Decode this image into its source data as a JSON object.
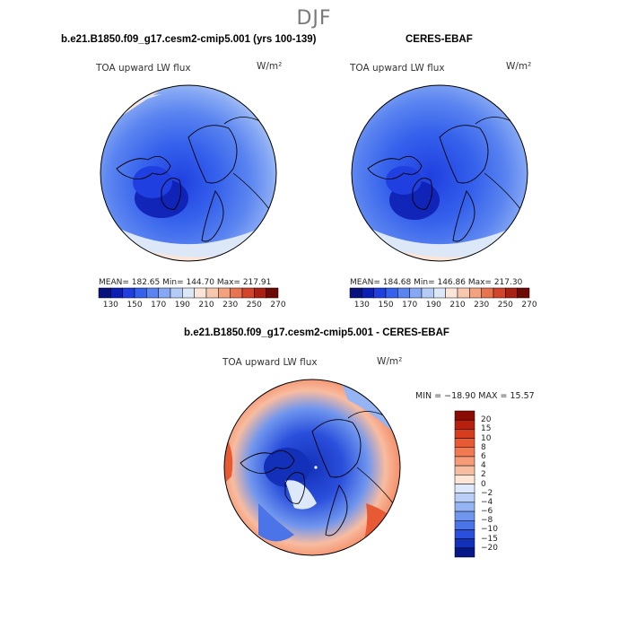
{
  "figure": {
    "season": "DJF",
    "variable": "TOA upward LW flux",
    "units": "W/m²",
    "colors": {
      "accent_blue": "#2f5fe8",
      "deep_blue": "#0a1a9a",
      "land_outline": "#000000"
    }
  },
  "panels": {
    "model": {
      "title": "b.e21.B1850.f09_g17.cesm2-cmip5.001 (yrs 100-139)",
      "stats": "MEAN= 182.65   Min= 144.70   Max= 217.91"
    },
    "obs": {
      "title": "CERES-EBAF",
      "stats": "MEAN= 184.68   Min= 146.86   Max= 217.30"
    },
    "diff": {
      "title": "b.e21.B1850.f09_g17.cesm2-cmip5.001 - CERES-EBAF",
      "minmax": "MIN = −18.90  MAX =  15.57"
    }
  },
  "chart_data": [
    {
      "type": "heatmap",
      "name": "model",
      "projection": "north polar stereographic",
      "colorbar_levels": [
        130,
        150,
        170,
        190,
        210,
        230,
        250,
        270
      ],
      "colorbar_colors": [
        "#08127e",
        "#0d1fb3",
        "#1f3fe0",
        "#3561ec",
        "#5a84f0",
        "#86a8f4",
        "#b4cbf6",
        "#dce7f8",
        "#fbe5d8",
        "#f8c8ae",
        "#f2a27f",
        "#e8734f",
        "#d2452b",
        "#a92014",
        "#6e0a05"
      ],
      "mean": 182.65,
      "min": 144.7,
      "max": 217.91
    },
    {
      "type": "heatmap",
      "name": "obs",
      "projection": "north polar stereographic",
      "colorbar_levels": [
        130,
        150,
        170,
        190,
        210,
        230,
        250,
        270
      ],
      "mean": 184.68,
      "min": 146.86,
      "max": 217.3
    },
    {
      "type": "heatmap",
      "name": "difference",
      "projection": "north polar stereographic",
      "colorbar_levels": [
        20,
        15,
        10,
        8,
        6,
        4,
        2,
        0,
        -2,
        -4,
        -6,
        -8,
        -10,
        -15,
        -20
      ],
      "colorbar_tick_labels": [
        "20",
        "15",
        "10",
        "8",
        "6",
        "4",
        "2",
        "0",
        "−2",
        "−4",
        "−6",
        "−8",
        "−10",
        "−15",
        "−20"
      ],
      "colorbar_colors": [
        "#8b0c05",
        "#b5200f",
        "#d63c1e",
        "#e85a34",
        "#f27a50",
        "#f69b76",
        "#f8bca0",
        "#fde6d6",
        "#dde8fb",
        "#b9cff8",
        "#95b4f3",
        "#6f95ee",
        "#4a74e8",
        "#2a4fdc",
        "#1330b8",
        "#06178a"
      ],
      "min": -18.9,
      "max": 15.57
    }
  ]
}
